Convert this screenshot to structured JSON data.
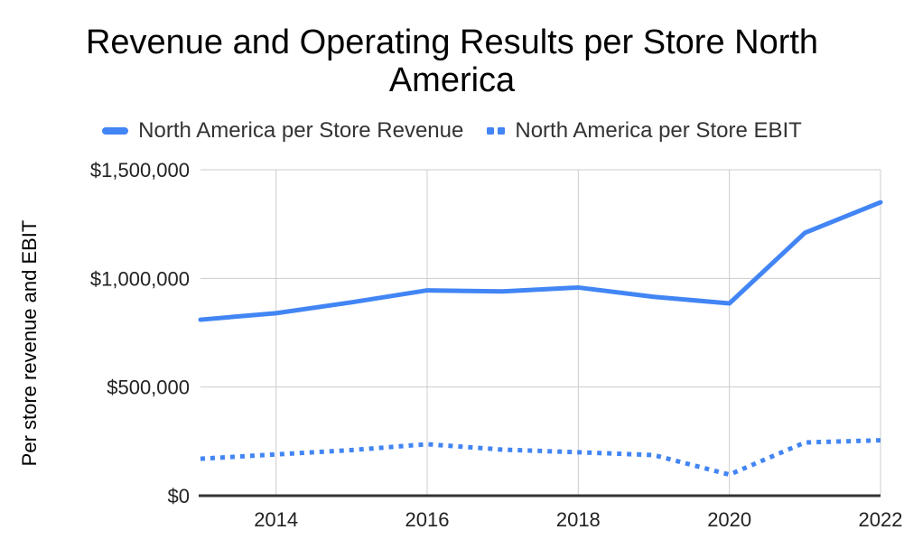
{
  "colors": {
    "series": "#4285f4",
    "grid": "#cccccc",
    "axis": "#333333",
    "tick_text": "#222222",
    "legend_text": "#333333",
    "title_text": "#000000"
  },
  "chart_data": {
    "type": "line",
    "title": "Revenue and Operating Results per Store North America",
    "xlabel": "",
    "ylabel": "Per store revenue and EBIT",
    "x": [
      2013,
      2014,
      2015,
      2016,
      2017,
      2018,
      2019,
      2020,
      2021,
      2022
    ],
    "series": [
      {
        "name": "North America per Store Revenue",
        "line_style": "solid",
        "values": [
          810000,
          840000,
          890000,
          945000,
          940000,
          958000,
          915000,
          885000,
          1210000,
          1350000
        ]
      },
      {
        "name": "North America per Store EBIT",
        "line_style": "dotted",
        "values": [
          170000,
          190000,
          210000,
          237000,
          212000,
          200000,
          187000,
          97000,
          245000,
          255000
        ]
      }
    ],
    "ylim": [
      0,
      1500000
    ],
    "y_ticks": [
      {
        "value": 0,
        "label": "$0"
      },
      {
        "value": 500000,
        "label": "$500,000"
      },
      {
        "value": 1000000,
        "label": "$1,000,000"
      },
      {
        "value": 1500000,
        "label": "$1,500,000"
      }
    ],
    "x_ticks": [
      2014,
      2016,
      2018,
      2020,
      2022
    ],
    "grid": true,
    "legend_position": "top"
  }
}
